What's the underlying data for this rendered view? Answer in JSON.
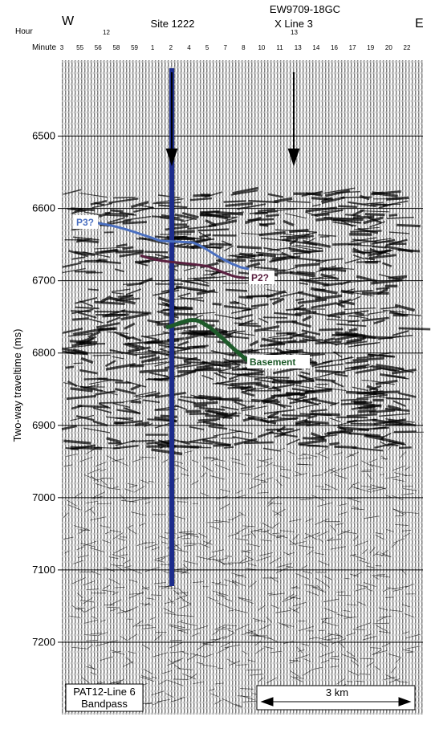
{
  "chart_data": {
    "type": "seismic-profile",
    "ylabel": "Two-way traveltime (ms)",
    "ylim": [
      6395,
      7300
    ],
    "yticks": [
      6500,
      6600,
      6700,
      6800,
      6900,
      7000,
      7100,
      7200
    ],
    "grid": true,
    "west": "W",
    "east": "E",
    "hour_label": "Hour",
    "hours": [
      "12",
      "13"
    ],
    "minute_label": "Minute",
    "minutes": [
      "3",
      "55",
      "56",
      "58",
      "59",
      "1",
      "2",
      "4",
      "5",
      "7",
      "8",
      "10",
      "11",
      "13",
      "14",
      "16",
      "17",
      "19",
      "20",
      "22"
    ],
    "site": "Site 1222",
    "crossing": [
      "EW9709-18GC",
      "X Line 3"
    ],
    "horizons": [
      {
        "name": "P3?",
        "color": "#4a6fc0"
      },
      {
        "name": "P2?",
        "color": "#5a2040"
      },
      {
        "name": "Basement",
        "color": "#1e5a2a"
      }
    ],
    "profile_label": [
      "PAT12-Line 6",
      "Bandpass"
    ],
    "scale_bar": "3 km"
  }
}
